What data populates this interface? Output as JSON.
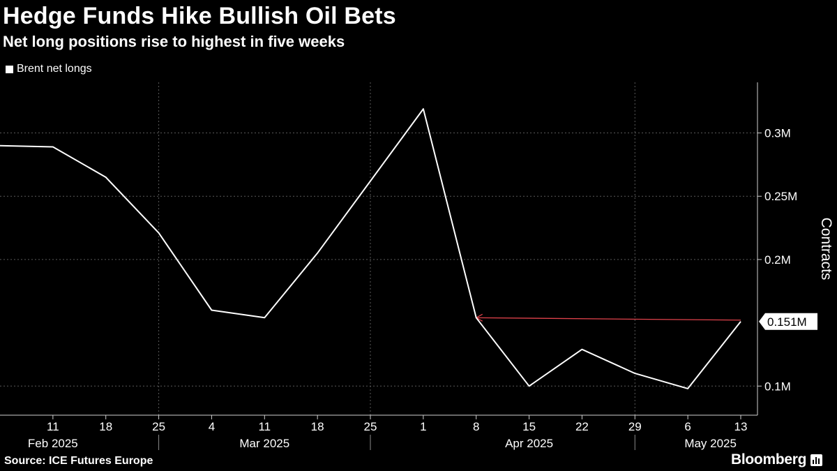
{
  "header": {
    "title": "Hedge Funds Hike Bullish Oil Bets",
    "subtitle": "Net long positions rise to highest in five weeks"
  },
  "footer": {
    "source": "Source: ICE Futures Europe",
    "brand": "Bloomberg"
  },
  "chart_data": {
    "type": "line",
    "series": [
      {
        "name": "Brent net longs",
        "color": "#ffffff",
        "x": [
          "2025-02-04",
          "2025-02-11",
          "2025-02-18",
          "2025-02-25",
          "2025-03-04",
          "2025-03-11",
          "2025-03-18",
          "2025-03-25",
          "2025-04-01",
          "2025-04-08",
          "2025-04-15",
          "2025-04-22",
          "2025-04-29",
          "2025-05-06",
          "2025-05-13"
        ],
        "values": [
          0.29,
          0.289,
          0.265,
          0.221,
          0.16,
          0.154,
          0.205,
          0.262,
          0.319,
          0.154,
          0.1,
          0.129,
          0.11,
          0.098,
          0.151
        ]
      }
    ],
    "last_value_label": "0.151M",
    "reference_line": {
      "from": "2025-04-08",
      "to": "2025-05-13",
      "value": 0.154,
      "color": "#e0424b"
    },
    "ylabel": "Contracts",
    "ylim": [
      0.077,
      0.34
    ],
    "y_ticks": [
      {
        "value": 0.1,
        "label": "0.1M"
      },
      {
        "value": 0.2,
        "label": "0.2M"
      },
      {
        "value": 0.25,
        "label": "0.25M"
      },
      {
        "value": 0.3,
        "label": "0.3M"
      }
    ],
    "x_ticks": [
      {
        "date": "2025-02-11",
        "label": "11"
      },
      {
        "date": "2025-02-18",
        "label": "18"
      },
      {
        "date": "2025-02-25",
        "label": "25"
      },
      {
        "date": "2025-03-04",
        "label": "4"
      },
      {
        "date": "2025-03-11",
        "label": "11"
      },
      {
        "date": "2025-03-18",
        "label": "18"
      },
      {
        "date": "2025-03-25",
        "label": "25"
      },
      {
        "date": "2025-04-01",
        "label": "1"
      },
      {
        "date": "2025-04-08",
        "label": "8"
      },
      {
        "date": "2025-04-15",
        "label": "15"
      },
      {
        "date": "2025-04-22",
        "label": "22"
      },
      {
        "date": "2025-04-29",
        "label": "29"
      },
      {
        "date": "2025-05-06",
        "label": "6"
      },
      {
        "date": "2025-05-13",
        "label": "13"
      }
    ],
    "x_groups": [
      {
        "label": "Feb 2025",
        "center": "2025-02-11"
      },
      {
        "label": "Mar 2025",
        "center": "2025-03-11"
      },
      {
        "label": "Apr 2025",
        "center": "2025-04-15"
      },
      {
        "label": "May 2025",
        "center": "2025-05-09"
      }
    ],
    "x_group_separators": [
      "2025-02-25",
      "2025-03-25",
      "2025-04-29"
    ],
    "grid": true,
    "legend_position": "top-left"
  }
}
